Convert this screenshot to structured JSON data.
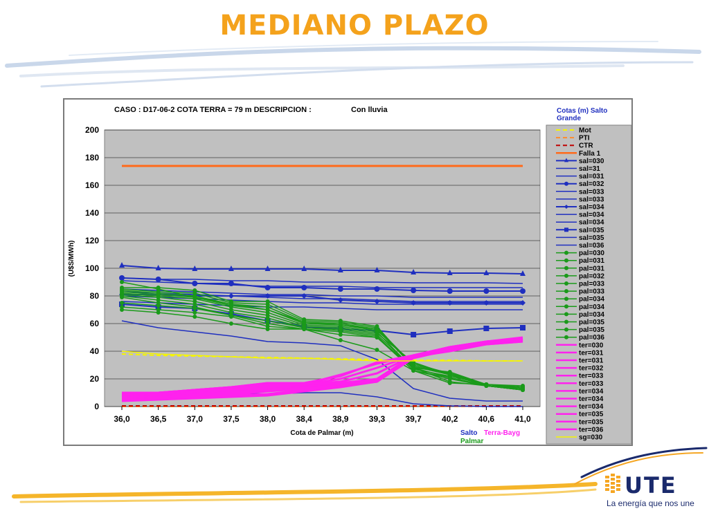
{
  "slide": {
    "title": "MEDIANO PLAZO"
  },
  "brand": {
    "logo_text": "UTE",
    "tagline": "La energía que nos une"
  },
  "colors": {
    "title": "#f4a21c",
    "brand_blue": "#1a2a6c",
    "brand_orange": "#f5a623"
  },
  "chart_data": {
    "type": "line",
    "title": "CASO : D17-06-2 COTA TERRA = 79 m  DESCRIPCION :",
    "description": "Con lluvia",
    "xlabel": "Cota de Palmar (m)",
    "ylabel": "(U$S/MWh)",
    "ylim": [
      0,
      200
    ],
    "yticks": [
      0,
      20,
      40,
      60,
      80,
      100,
      120,
      140,
      160,
      180,
      200
    ],
    "grid": true,
    "legend_position": "right",
    "legend_title": "Cotas (m) Salto Grande",
    "group_labels": [
      {
        "text": "Salto",
        "color": "#1f2fbf"
      },
      {
        "text": "Terra-Bayg",
        "color": "#ff22ee"
      },
      {
        "text": "Palmar",
        "color": "#1a9a1a"
      }
    ],
    "categories": [
      "36,0",
      "36,5",
      "37,0",
      "37,5",
      "38,0",
      "38,4",
      "38,9",
      "39,3",
      "39,7",
      "40,2",
      "40,6",
      "41,0"
    ],
    "series": [
      {
        "name": "Mot",
        "color": "#f5f500",
        "dash": "6,4",
        "width": 2,
        "values": [
          38,
          37,
          36.5,
          36,
          35.5,
          35,
          34.5,
          34,
          33.5,
          33.5,
          33,
          33
        ]
      },
      {
        "name": "PTI",
        "color": "#ff8a2a",
        "dash": "6,4",
        "width": 2,
        "values": [
          0,
          0,
          0,
          0,
          0,
          0,
          0,
          0,
          0,
          0,
          0,
          0
        ]
      },
      {
        "name": "CTR",
        "color": "#c00000",
        "dash": "6,4",
        "width": 2,
        "values": [
          0.5,
          0.5,
          0.5,
          0.5,
          0.5,
          0.5,
          0.5,
          0.5,
          0.5,
          0.5,
          0.5,
          0.5
        ]
      },
      {
        "name": "Falla 1",
        "color": "#ff6a1a",
        "width": 3,
        "values": [
          174,
          174,
          174,
          174,
          174,
          174,
          174,
          174,
          174,
          174,
          174,
          174
        ]
      },
      {
        "name": "sal=030",
        "color": "#1f2fbf",
        "width": 2,
        "marker": "triangle",
        "values": [
          102,
          100,
          99.5,
          99.5,
          99.5,
          99.5,
          98.5,
          98.5,
          97,
          96.5,
          96.5,
          96
        ]
      },
      {
        "name": "sal=31",
        "color": "#1f2fbf",
        "width": 1.5,
        "values": [
          93,
          92,
          92,
          91,
          91,
          90,
          90,
          90,
          89.5,
          89.5,
          89.5,
          89
        ]
      },
      {
        "name": "sal=031",
        "color": "#1f2fbf",
        "width": 1.5,
        "values": [
          91,
          90,
          89,
          88,
          87,
          87,
          87,
          86,
          86,
          86,
          86,
          86
        ]
      },
      {
        "name": "sal=032",
        "color": "#1f2fbf",
        "width": 2,
        "marker": "circle",
        "values": [
          93,
          92,
          89,
          89,
          86,
          86,
          85,
          85,
          84,
          83.5,
          83.5,
          83.5
        ]
      },
      {
        "name": "sal=033",
        "color": "#1f2fbf",
        "width": 1.5,
        "values": [
          85,
          84,
          83,
          82,
          81,
          81,
          80,
          80,
          79,
          79,
          79,
          79
        ]
      },
      {
        "name": "sal=033",
        "color": "#1f2fbf",
        "width": 1.5,
        "values": [
          83,
          82,
          81,
          80,
          79,
          78,
          78,
          77,
          76,
          76,
          76,
          76
        ]
      },
      {
        "name": "sal=034",
        "color": "#1f2fbf",
        "width": 2,
        "marker": "diamond",
        "values": [
          81,
          81,
          80,
          80,
          80,
          80,
          77,
          76,
          75,
          75,
          75,
          75
        ]
      },
      {
        "name": "sal=034",
        "color": "#1f2fbf",
        "width": 1.5,
        "values": [
          80,
          79,
          78,
          77,
          76,
          75,
          75,
          74,
          74,
          74,
          74,
          74
        ]
      },
      {
        "name": "sal=034",
        "color": "#1f2fbf",
        "width": 1.5,
        "values": [
          76,
          75,
          74,
          73,
          72,
          72,
          71,
          70,
          70,
          70,
          70,
          70
        ]
      },
      {
        "name": "sal=035",
        "color": "#1f2fbf",
        "width": 2,
        "marker": "square",
        "values": [
          74,
          72,
          71,
          67,
          62,
          58,
          56,
          55,
          52,
          54.5,
          56.5,
          57
        ]
      },
      {
        "name": "sal=035",
        "color": "#1f2fbf",
        "width": 1.5,
        "values": [
          62,
          57,
          54,
          51,
          47,
          46,
          44,
          34,
          13,
          6,
          4,
          4
        ]
      },
      {
        "name": "sal=036",
        "color": "#1f2fbf",
        "width": 1.5,
        "values": [
          10,
          10,
          10,
          10,
          9,
          10,
          10,
          7,
          2,
          0.5,
          0,
          0
        ]
      },
      {
        "name": "pal=030",
        "color": "#1a9a1a",
        "width": 1.5,
        "marker": "dot",
        "values": [
          86,
          86,
          84,
          76,
          76,
          63,
          62,
          58,
          28,
          25,
          16,
          15
        ]
      },
      {
        "name": "pal=031",
        "color": "#1a9a1a",
        "width": 1.5,
        "marker": "dot",
        "values": [
          85,
          83,
          82,
          75,
          74,
          62,
          61,
          57,
          30,
          24,
          16,
          14
        ]
      },
      {
        "name": "pal=031",
        "color": "#1a9a1a",
        "width": 1.5,
        "marker": "dot",
        "values": [
          84,
          82,
          80,
          74,
          72,
          61,
          60,
          56,
          29,
          23,
          16,
          14
        ]
      },
      {
        "name": "pal=032",
        "color": "#1a9a1a",
        "width": 1.5,
        "marker": "dot",
        "values": [
          83,
          81,
          79,
          73,
          70,
          60,
          59,
          55,
          31,
          24,
          16,
          13
        ]
      },
      {
        "name": "pal=033",
        "color": "#1a9a1a",
        "width": 1.5,
        "marker": "dot",
        "values": [
          82,
          80,
          78,
          72,
          68,
          59,
          58,
          54,
          27,
          22,
          16,
          13
        ]
      },
      {
        "name": "pal=033",
        "color": "#1a9a1a",
        "width": 1.5,
        "marker": "dot",
        "values": [
          81,
          79,
          76,
          70,
          66,
          58,
          57,
          53,
          32,
          23,
          15,
          12
        ]
      },
      {
        "name": "pal=034",
        "color": "#1a9a1a",
        "width": 1.5,
        "marker": "dot",
        "values": [
          80,
          77,
          74,
          68,
          64,
          57,
          56,
          52,
          28,
          21,
          15,
          12
        ]
      },
      {
        "name": "pal=034",
        "color": "#1a9a1a",
        "width": 1.5,
        "marker": "dot",
        "values": [
          79,
          75,
          72,
          66,
          62,
          57,
          55,
          51,
          26,
          21,
          15,
          12
        ]
      },
      {
        "name": "pal=034",
        "color": "#1a9a1a",
        "width": 1.5,
        "marker": "dot",
        "values": [
          75,
          73,
          71,
          66,
          60,
          56,
          54,
          50,
          26,
          20,
          15,
          12
        ]
      },
      {
        "name": "pal=035",
        "color": "#1a9a1a",
        "width": 1.5,
        "marker": "dot",
        "values": [
          72,
          70,
          68,
          65,
          58,
          56,
          52,
          50,
          28,
          18,
          15,
          12
        ]
      },
      {
        "name": "pal=035",
        "color": "#1a9a1a",
        "width": 1.5,
        "marker": "dot",
        "values": [
          70,
          68,
          65,
          60,
          56,
          56,
          48,
          41,
          26,
          17,
          16,
          14
        ]
      },
      {
        "name": "pal=036",
        "color": "#1a9a1a",
        "width": 1.5,
        "marker": "dot",
        "values": [
          90,
          85,
          79,
          74,
          70,
          61,
          59,
          56,
          29,
          24,
          15,
          13
        ]
      },
      {
        "name": "ter=030",
        "color": "#ff22ee",
        "width": 3,
        "values": [
          4,
          5,
          6,
          7,
          8,
          11,
          14,
          18,
          36,
          40,
          45,
          47
        ]
      },
      {
        "name": "ter=031",
        "color": "#ff22ee",
        "width": 3,
        "values": [
          5,
          6,
          7,
          8,
          9,
          12,
          15,
          18,
          35,
          41,
          45,
          47
        ]
      },
      {
        "name": "ter=031",
        "color": "#ff22ee",
        "width": 3,
        "values": [
          6,
          7,
          8,
          9,
          11,
          13,
          15,
          19,
          36,
          41,
          46,
          48
        ]
      },
      {
        "name": "ter=032",
        "color": "#ff22ee",
        "width": 3,
        "values": [
          6,
          7,
          9,
          10,
          12,
          14,
          16,
          18,
          37,
          41,
          46,
          48
        ]
      },
      {
        "name": "ter=033",
        "color": "#ff22ee",
        "width": 3,
        "values": [
          7,
          8,
          10,
          11,
          13,
          15,
          16,
          18,
          36,
          42,
          46,
          48
        ]
      },
      {
        "name": "ter=033",
        "color": "#ff22ee",
        "width": 3,
        "values": [
          7,
          8,
          10,
          12,
          13,
          15,
          17,
          18,
          37,
          42,
          46,
          48
        ]
      },
      {
        "name": "ter=034",
        "color": "#ff22ee",
        "width": 3,
        "values": [
          8,
          9,
          10,
          12,
          14,
          15,
          17,
          19,
          36,
          42,
          46,
          49
        ]
      },
      {
        "name": "ter=034",
        "color": "#ff22ee",
        "width": 3,
        "values": [
          8,
          9,
          11,
          12,
          14,
          16,
          17,
          20,
          37,
          42,
          47,
          49
        ]
      },
      {
        "name": "ter=034",
        "color": "#ff22ee",
        "width": 3,
        "values": [
          8,
          9,
          11,
          13,
          15,
          16,
          18,
          24,
          37,
          43,
          47,
          49
        ]
      },
      {
        "name": "ter=035",
        "color": "#ff22ee",
        "width": 3,
        "values": [
          9,
          10,
          12,
          14,
          16,
          16,
          20,
          28,
          37,
          43,
          47,
          49
        ]
      },
      {
        "name": "ter=035",
        "color": "#ff22ee",
        "width": 3,
        "values": [
          9,
          10,
          12,
          14,
          17,
          16,
          23,
          31,
          37,
          43,
          47,
          49
        ]
      },
      {
        "name": "ter=036",
        "color": "#ff22ee",
        "width": 3,
        "values": [
          10,
          10,
          12,
          14,
          17,
          17,
          22,
          32,
          37,
          43,
          47,
          50
        ]
      },
      {
        "name": "sg=030",
        "color": "#f5f500",
        "width": 1.5,
        "values": [
          40,
          38,
          37,
          36,
          35,
          35,
          34,
          33,
          33,
          33,
          33,
          33
        ]
      }
    ]
  }
}
